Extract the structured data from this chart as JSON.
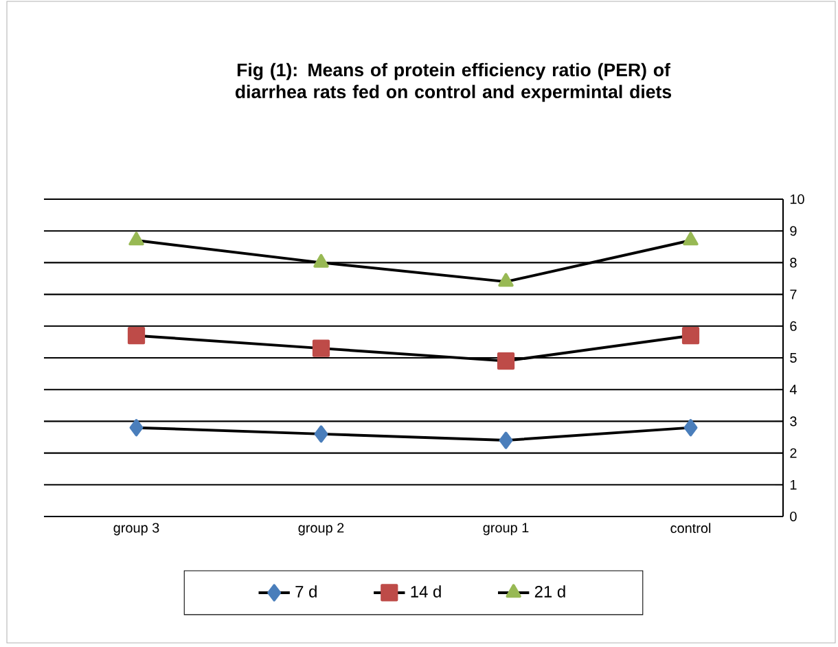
{
  "chart_data": {
    "type": "line",
    "title": "Fig (1): Means of protein efficiency ratio (PER)  of diarrhea rats fed on control and expermintal diets",
    "categories": [
      "group 3",
      "group 2",
      "group 1",
      "control"
    ],
    "series": [
      {
        "name": "7 d",
        "color": "#4a7ebb",
        "marker": "diamond",
        "values": [
          2.8,
          2.6,
          2.4,
          2.8
        ]
      },
      {
        "name": "14 d",
        "color": "#be4b48",
        "marker": "square",
        "values": [
          5.7,
          5.3,
          4.9,
          5.7
        ]
      },
      {
        "name": "21 d",
        "color": "#98b954",
        "marker": "triangle",
        "values": [
          8.7,
          8.0,
          7.4,
          8.7
        ]
      }
    ],
    "ylim": [
      0,
      10
    ],
    "yticks": [
      0,
      1,
      2,
      3,
      4,
      5,
      6,
      7,
      8,
      9,
      10
    ],
    "grid": "y",
    "legend": "bottom",
    "line_style": "solid"
  }
}
